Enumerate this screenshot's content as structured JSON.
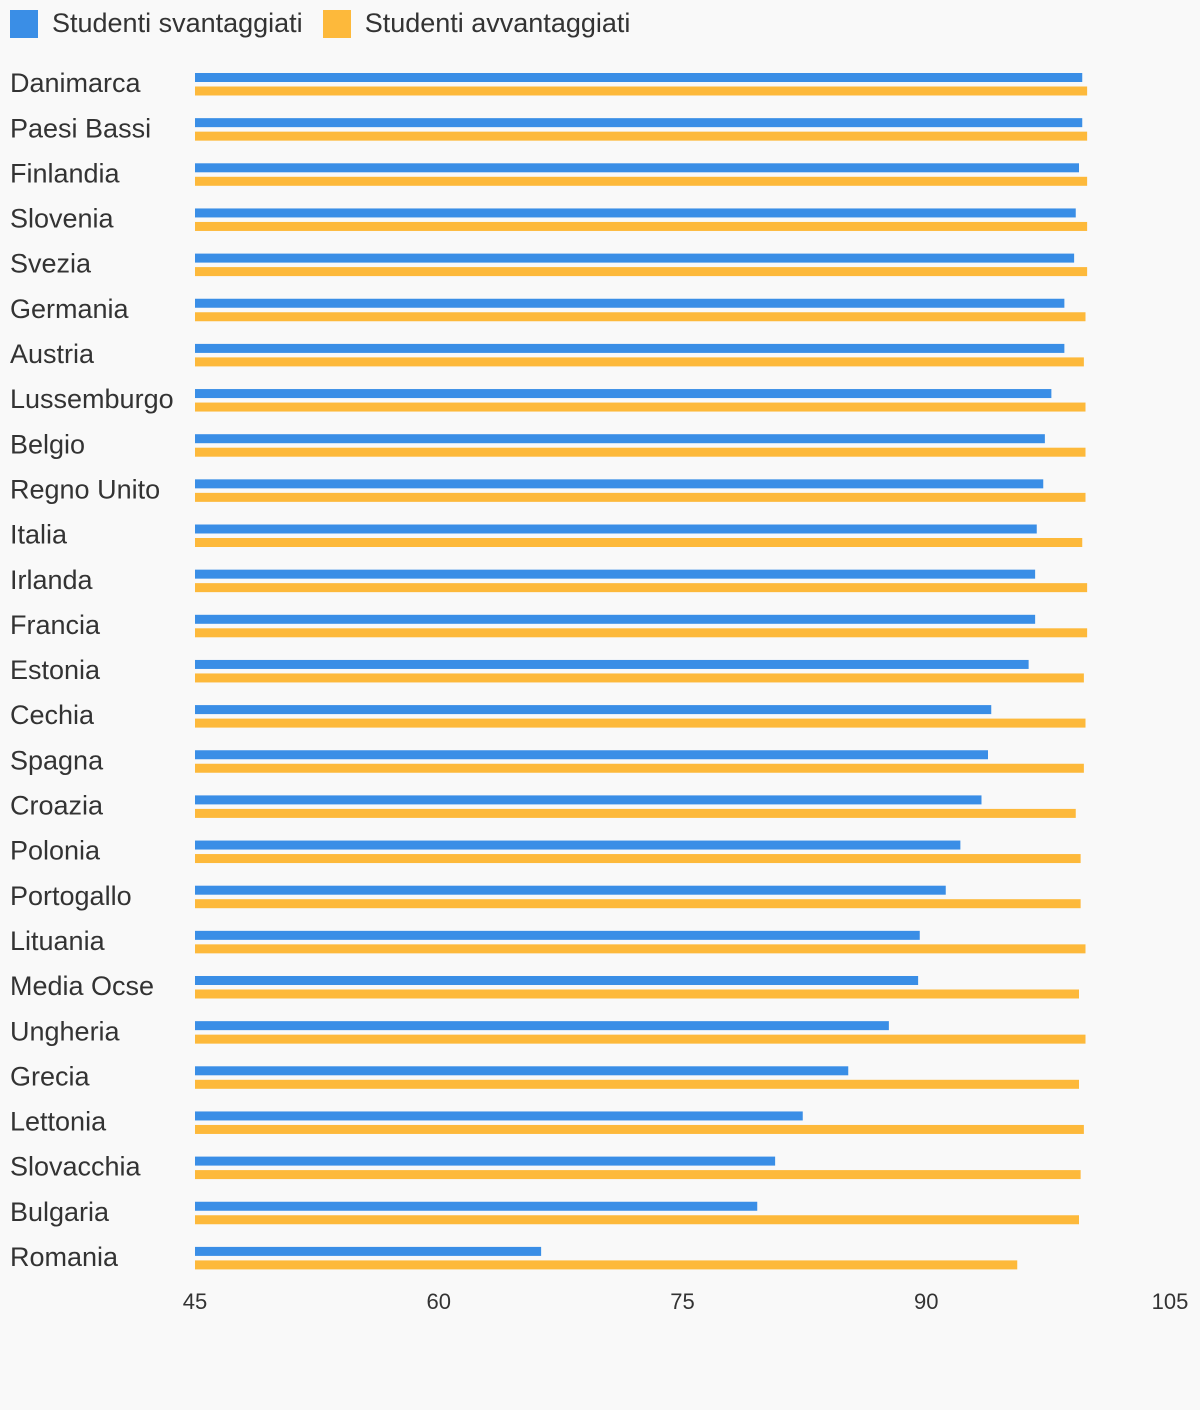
{
  "chart_data": {
    "type": "bar",
    "orientation": "horizontal",
    "categories": [
      "Danimarca",
      "Paesi Bassi",
      "Finlandia",
      "Slovenia",
      "Svezia",
      "Germania",
      "Austria",
      "Lussemburgo",
      "Belgio",
      "Regno Unito",
      "Italia",
      "Irlanda",
      "Francia",
      "Estonia",
      "Cechia",
      "Spagna",
      "Croazia",
      "Polonia",
      "Portogallo",
      "Lituania",
      "Media Ocse",
      "Ungheria",
      "Grecia",
      "Lettonia",
      "Slovacchia",
      "Bulgaria",
      "Romania"
    ],
    "series": [
      {
        "name": "Studenti svantaggiati",
        "color": "#3a8ee6",
        "values": [
          99.6,
          99.6,
          99.4,
          99.2,
          99.1,
          98.5,
          98.5,
          97.7,
          97.3,
          97.2,
          96.8,
          96.7,
          96.7,
          96.3,
          94.0,
          93.8,
          93.4,
          92.1,
          91.2,
          89.6,
          89.5,
          87.7,
          85.2,
          82.4,
          80.7,
          79.6,
          66.3
        ]
      },
      {
        "name": "Studenti avvantaggiati",
        "color": "#fdb93b",
        "values": [
          99.9,
          99.9,
          99.9,
          99.9,
          99.9,
          99.8,
          99.7,
          99.8,
          99.8,
          99.8,
          99.6,
          99.9,
          99.9,
          99.7,
          99.8,
          99.7,
          99.2,
          99.5,
          99.5,
          99.8,
          99.4,
          99.8,
          99.4,
          99.7,
          99.5,
          99.4,
          95.6
        ]
      }
    ],
    "xlim": [
      45,
      105
    ],
    "xticks": [
      "45",
      "60",
      "75",
      "90",
      "105"
    ],
    "grid": false,
    "legend_position": "top-left",
    "title": "",
    "xlabel": "",
    "ylabel": ""
  }
}
